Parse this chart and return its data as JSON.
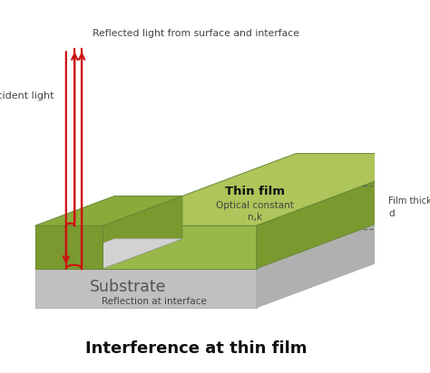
{
  "title": "Interference at thin film",
  "title_fontsize": 13,
  "title_fontweight": "bold",
  "bg_color": "#ffffff",
  "substrate_top": "#d2d2d2",
  "substrate_front": "#c0c0c0",
  "substrate_right": "#b0b0b0",
  "film_top_light": "#adc55a",
  "film_top_dark": "#8aaa3a",
  "film_front_light": "#98b84a",
  "film_front_dark": "#7a9a30",
  "film_side": "#6a8a28",
  "arrow_color": "#cc1111",
  "text_color": "#444444",
  "label_substrate": "Substrate",
  "label_thin_film": "Thin film",
  "label_optical": "Optical constant",
  "label_nk": "n,k",
  "label_film_thickness": "Film thickness",
  "label_d": "d",
  "label_incident": "Incident light",
  "label_reflected": "Reflected light from surface and interface",
  "label_reflection": "Reflection at interface"
}
